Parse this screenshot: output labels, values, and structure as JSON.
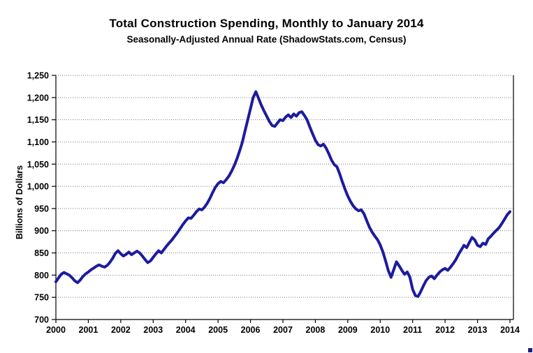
{
  "chart_data": {
    "type": "line",
    "title": "Total Construction Spending, Monthly to January 2014",
    "subtitle": "Seasonally-Adjusted Annual Rate (ShadowStats.com, Census)",
    "ylabel": "Billions of Dollars",
    "xlabel": "",
    "ylim": [
      700,
      1250
    ],
    "y_tick_step": 50,
    "y_tick_labels": [
      "1,250",
      "1,200",
      "1,150",
      "1,100",
      "1,050",
      "1,000",
      "950",
      "900",
      "850",
      "800",
      "750",
      "700"
    ],
    "x_tick_labels": [
      "2000",
      "2001",
      "2002",
      "2003",
      "2004",
      "2005",
      "2006",
      "2007",
      "2008",
      "2009",
      "2010",
      "2011",
      "2012",
      "2013",
      "2014"
    ],
    "frequency": "monthly",
    "x_start": "2000-01",
    "x_end": "2014-01",
    "grid": "dotted horizontal gridlines at each 50",
    "legend": "none",
    "line_color": "#1c1c9e",
    "series": [
      {
        "name": "Total Construction Spending (Billions of Dollars, SAAR)",
        "values": [
          785,
          794,
          802,
          806,
          803,
          800,
          794,
          787,
          783,
          789,
          797,
          803,
          807,
          812,
          816,
          820,
          823,
          820,
          818,
          822,
          829,
          838,
          849,
          855,
          848,
          843,
          847,
          852,
          846,
          850,
          854,
          850,
          843,
          835,
          828,
          832,
          840,
          848,
          855,
          850,
          858,
          866,
          873,
          880,
          888,
          896,
          905,
          914,
          922,
          929,
          928,
          935,
          943,
          949,
          947,
          953,
          962,
          973,
          986,
          998,
          1006,
          1011,
          1008,
          1015,
          1023,
          1034,
          1047,
          1062,
          1080,
          1100,
          1125,
          1150,
          1175,
          1200,
          1213,
          1198,
          1183,
          1170,
          1158,
          1146,
          1137,
          1135,
          1143,
          1150,
          1148,
          1156,
          1161,
          1155,
          1163,
          1158,
          1166,
          1168,
          1159,
          1149,
          1133,
          1118,
          1104,
          1094,
          1091,
          1095,
          1086,
          1073,
          1059,
          1049,
          1044,
          1028,
          1010,
          993,
          978,
          966,
          956,
          949,
          945,
          947,
          938,
          923,
          908,
          897,
          888,
          880,
          868,
          852,
          832,
          810,
          795,
          812,
          830,
          821,
          811,
          802,
          807,
          795,
          768,
          754,
          752,
          763,
          776,
          788,
          795,
          798,
          792,
          800,
          807,
          812,
          815,
          811,
          818,
          826,
          835,
          847,
          857,
          867,
          862,
          874,
          885,
          879,
          867,
          864,
          872,
          869,
          882,
          888,
          895,
          901,
          907,
          916,
          926,
          936,
          943
        ]
      }
    ]
  },
  "colors": {
    "background": "#ffffff",
    "line": "#1c1c9e",
    "axis": "#000000",
    "gridline": "#777777",
    "text": "#000000"
  }
}
